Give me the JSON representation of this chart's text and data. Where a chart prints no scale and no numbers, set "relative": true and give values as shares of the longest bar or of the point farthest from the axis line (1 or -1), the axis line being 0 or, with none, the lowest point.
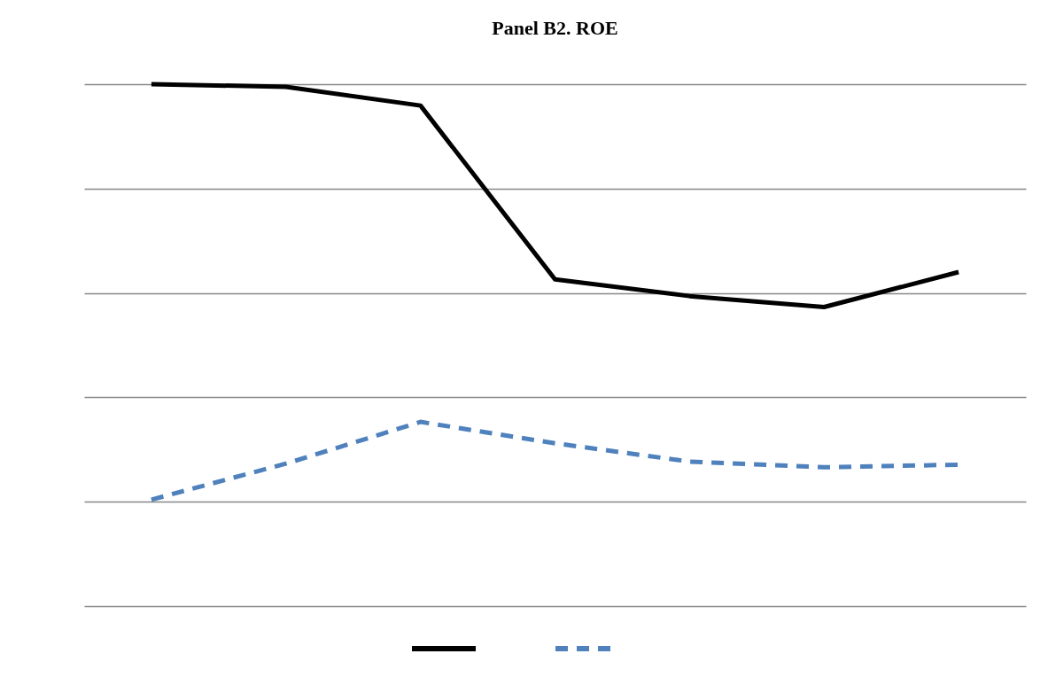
{
  "chart_data": {
    "type": "line",
    "title": "Panel B2. ROE",
    "relative": true,
    "categories": [
      null,
      null,
      null,
      null,
      null,
      null,
      null
    ],
    "series": [
      {
        "color": "#000000",
        "line_style": "solid",
        "values": [
          1,
          0.995,
          0.959,
          0.626,
          0.594,
          0.573,
          0.64
        ]
      },
      {
        "color": "#4f81bd",
        "line_style": "dashed",
        "values": [
          0.204,
          0.273,
          0.353,
          0.312,
          0.277,
          0.266,
          0.271
        ]
      }
    ],
    "grid": "y",
    "marker": "none"
  }
}
